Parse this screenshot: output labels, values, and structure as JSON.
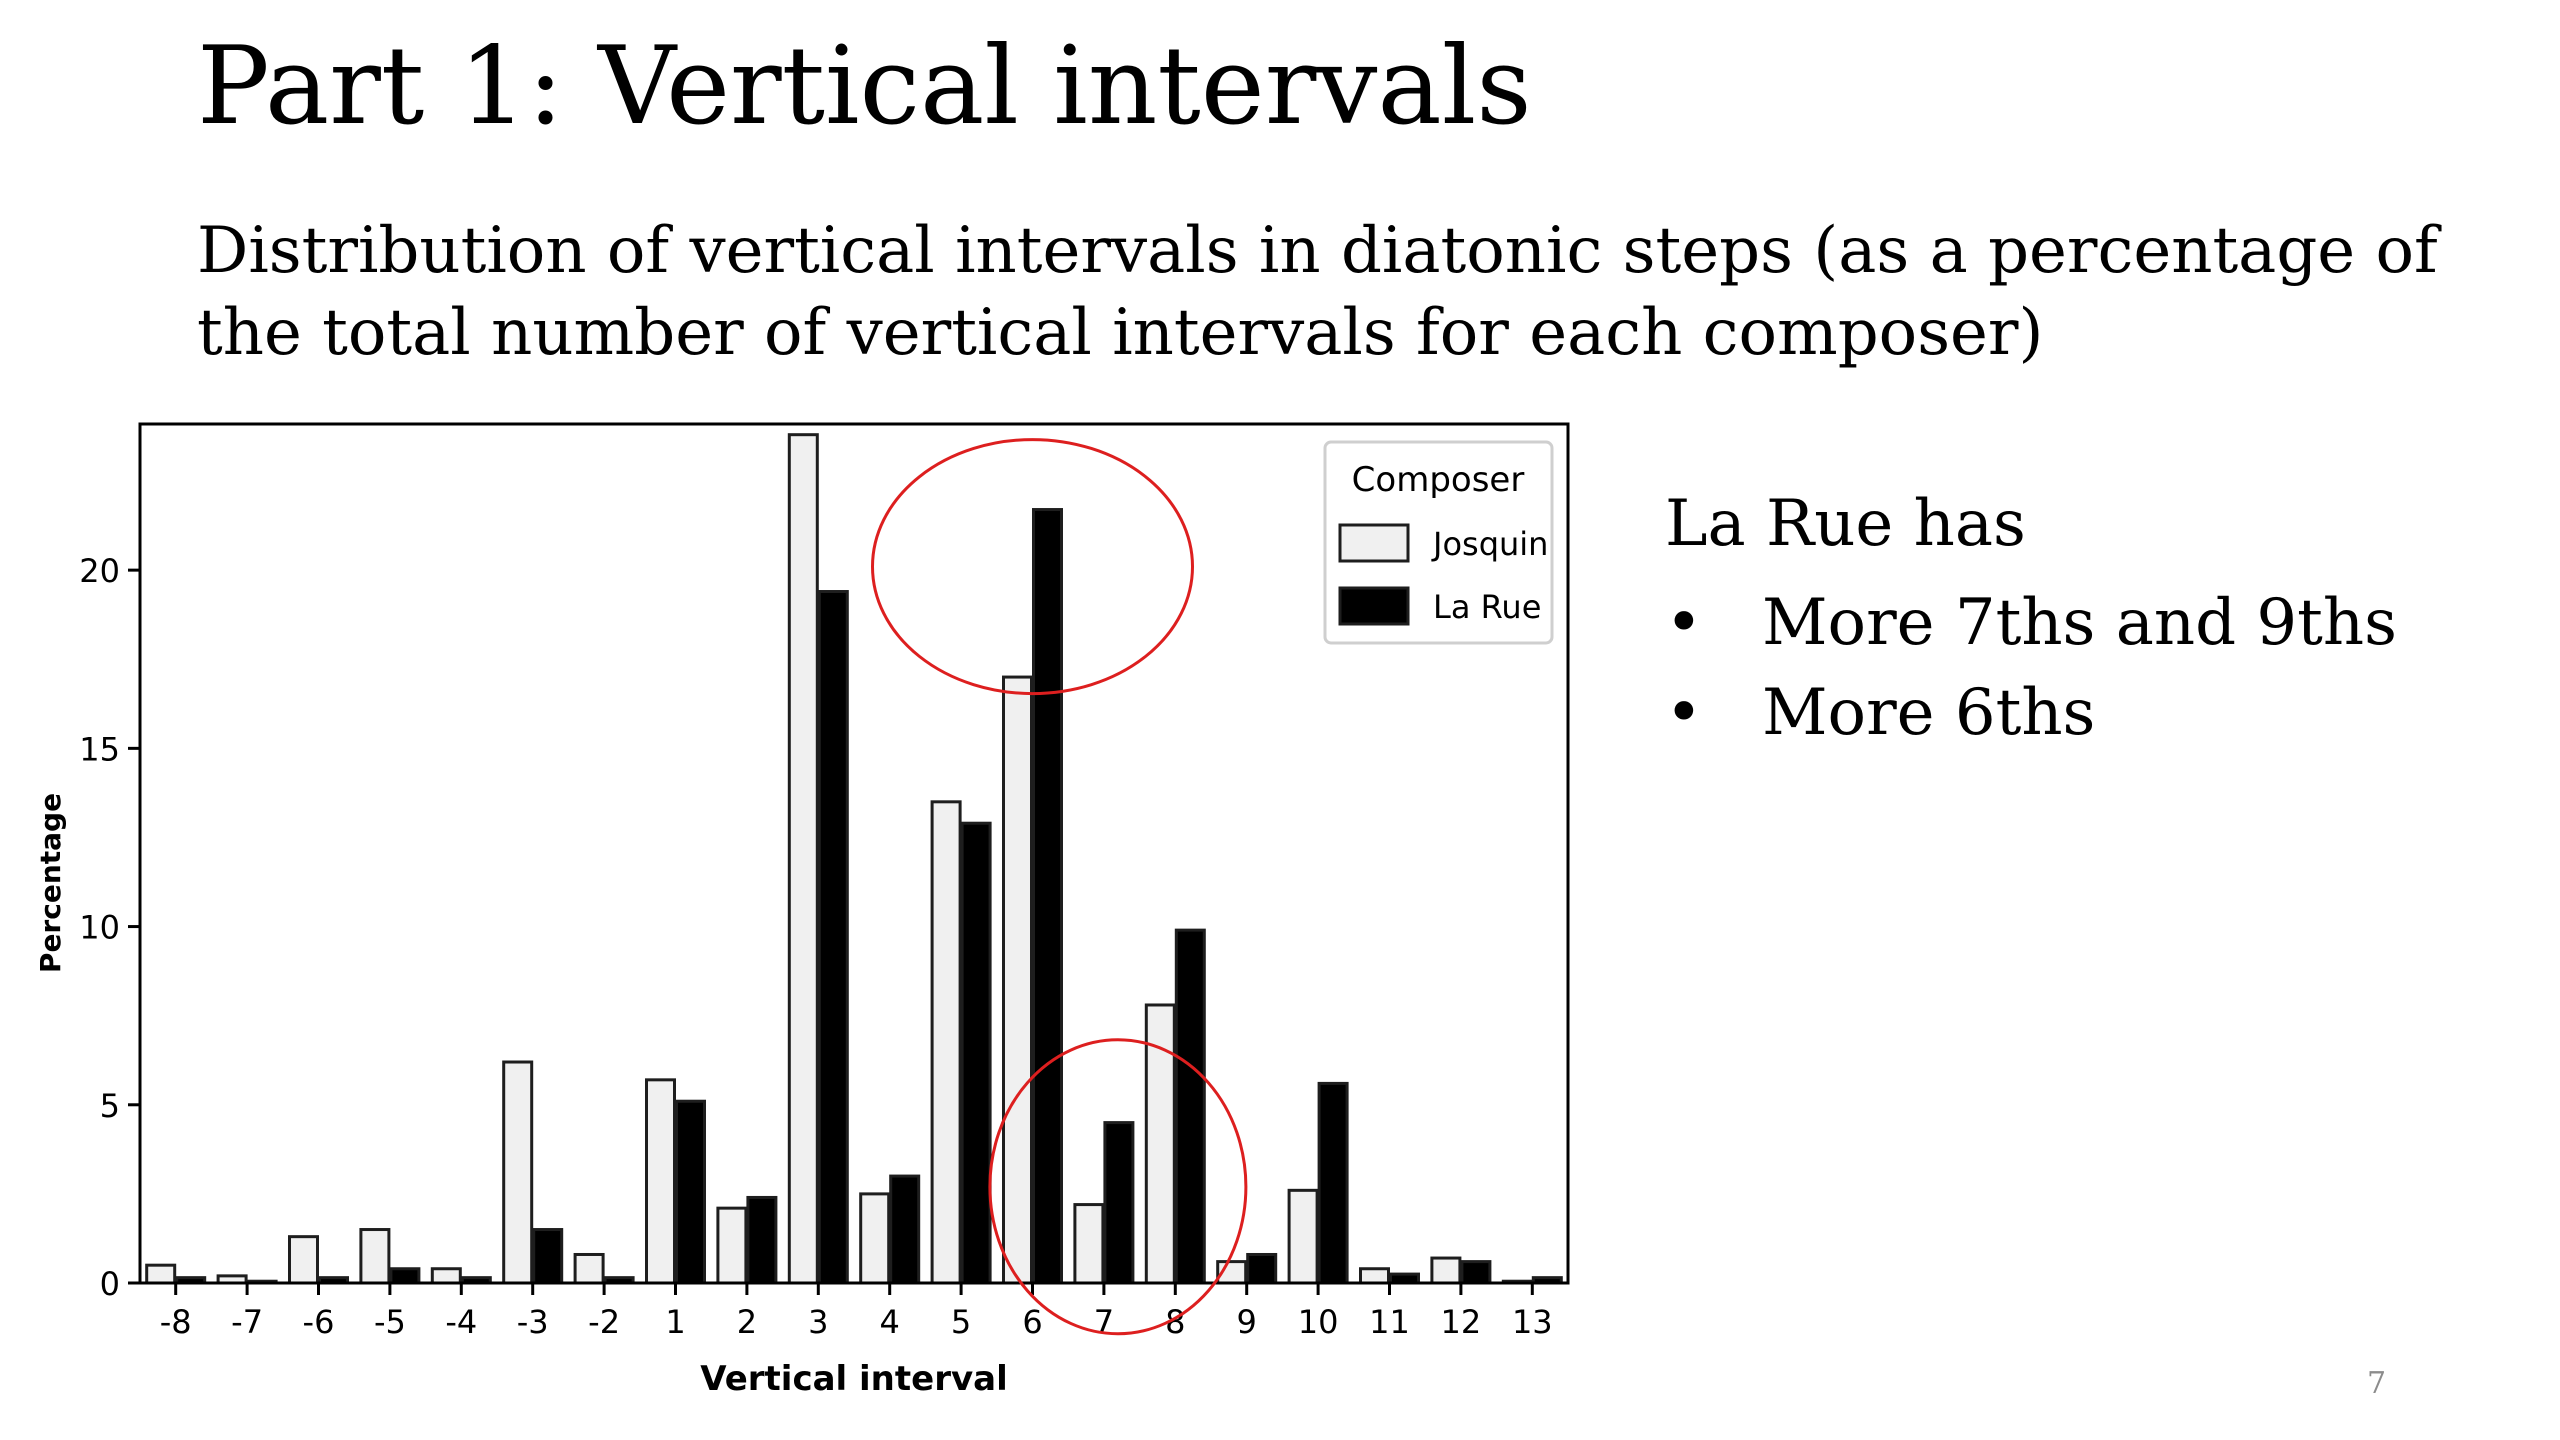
{
  "slide": {
    "title": "Part 1: Vertical intervals",
    "subtitle": "Distribution of vertical intervals in diatonic steps (as a percentage of the total number of vertical intervals for each composer)",
    "page_number": "7"
  },
  "notes": {
    "lead": "La Rue has",
    "bullet_glyph": "•",
    "bullets": [
      "More 7ths and 9ths",
      "More 6ths"
    ]
  },
  "colors": {
    "josquin_fill": "#f0f0f0",
    "la_rue_fill": "#000000",
    "bar_outline": "#1e1e1e",
    "annotation": "#dd1f1f"
  },
  "chart_data": {
    "type": "bar",
    "xlabel": "Vertical interval",
    "ylabel": "Percentage",
    "ylim": [
      0,
      24.1
    ],
    "yticks": [
      0,
      5,
      10,
      15,
      20
    ],
    "grid": false,
    "legend": {
      "title": "Composer",
      "position": "top-right"
    },
    "categories": [
      "-8",
      "-7",
      "-6",
      "-5",
      "-4",
      "-3",
      "-2",
      "1",
      "2",
      "3",
      "4",
      "5",
      "6",
      "7",
      "8",
      "9",
      "10",
      "11",
      "12",
      "13"
    ],
    "series": [
      {
        "name": "Josquin",
        "values": [
          0.5,
          0.2,
          1.3,
          1.5,
          0.4,
          6.2,
          0.8,
          5.7,
          2.1,
          23.8,
          2.5,
          13.5,
          17.0,
          2.2,
          7.8,
          0.6,
          2.6,
          0.4,
          0.7,
          0.05
        ]
      },
      {
        "name": "La Rue",
        "values": [
          0.15,
          0.05,
          0.15,
          0.4,
          0.15,
          1.5,
          0.15,
          5.1,
          2.4,
          19.4,
          3.0,
          12.9,
          21.7,
          4.5,
          9.9,
          0.8,
          5.6,
          0.25,
          0.6,
          0.15
        ]
      }
    ],
    "annotations": [
      {
        "shape": "ellipse",
        "around_category": "6",
        "note": "red circle"
      },
      {
        "shape": "ellipse",
        "around_category": "7",
        "note": "red circle"
      }
    ]
  }
}
